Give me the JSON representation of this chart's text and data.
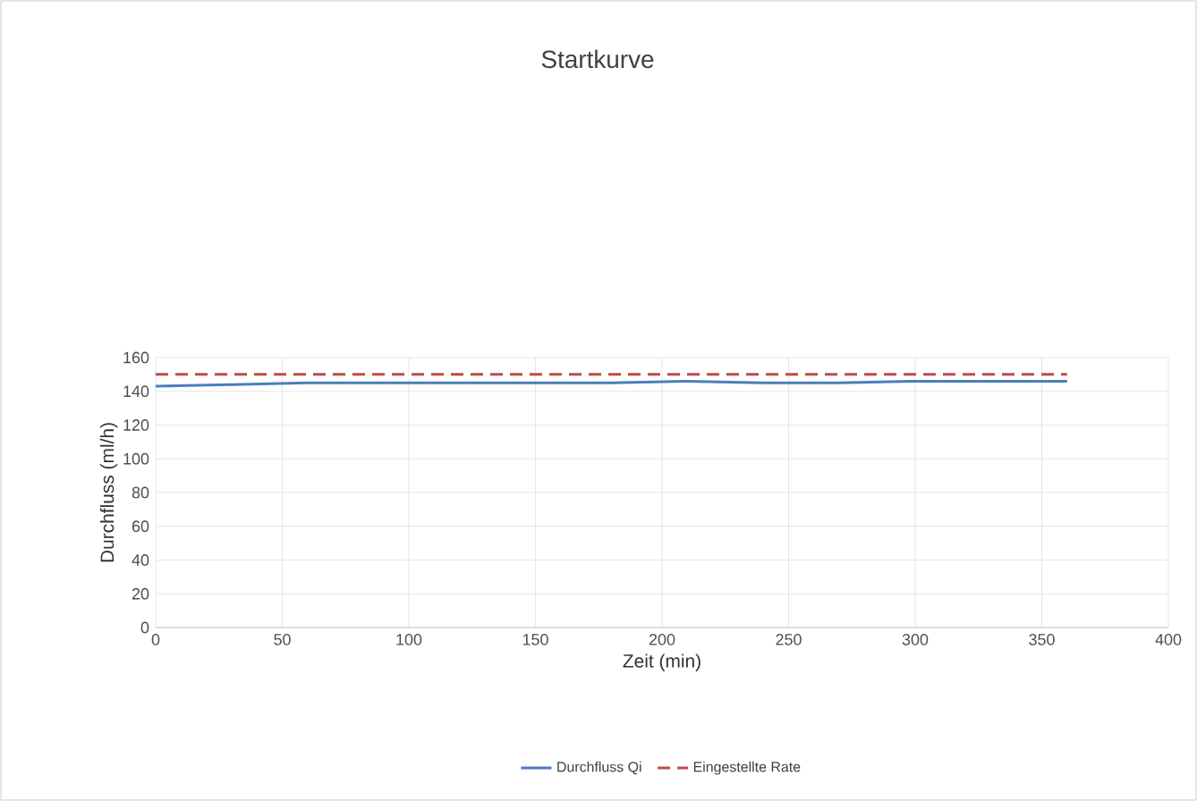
{
  "chart_data": {
    "type": "line",
    "title": "Startkurve",
    "xlabel": "Zeit (min)",
    "ylabel": "Durchfluss (ml/h)",
    "series": [
      {
        "name": "Durchfluss Qi",
        "color": "#4a7ebb",
        "line_style": "solid",
        "x": [
          0,
          30,
          60,
          90,
          120,
          150,
          180,
          210,
          240,
          270,
          300,
          330,
          360
        ],
        "values": [
          143,
          144,
          145,
          145,
          145,
          145,
          145,
          146,
          145,
          145,
          146,
          146,
          146
        ]
      },
      {
        "name": "Eingestellte Rate",
        "color": "#be4b48",
        "line_style": "dashed",
        "x": [
          0,
          360
        ],
        "values": [
          150,
          150
        ]
      }
    ],
    "xlim": [
      0,
      400
    ],
    "xticks": [
      0,
      50,
      100,
      150,
      200,
      250,
      300,
      350,
      400
    ],
    "ylim": [
      0,
      160
    ],
    "yticks": [
      0,
      20,
      40,
      60,
      80,
      100,
      120,
      140,
      160
    ],
    "grid": true,
    "legend": "bottom"
  }
}
